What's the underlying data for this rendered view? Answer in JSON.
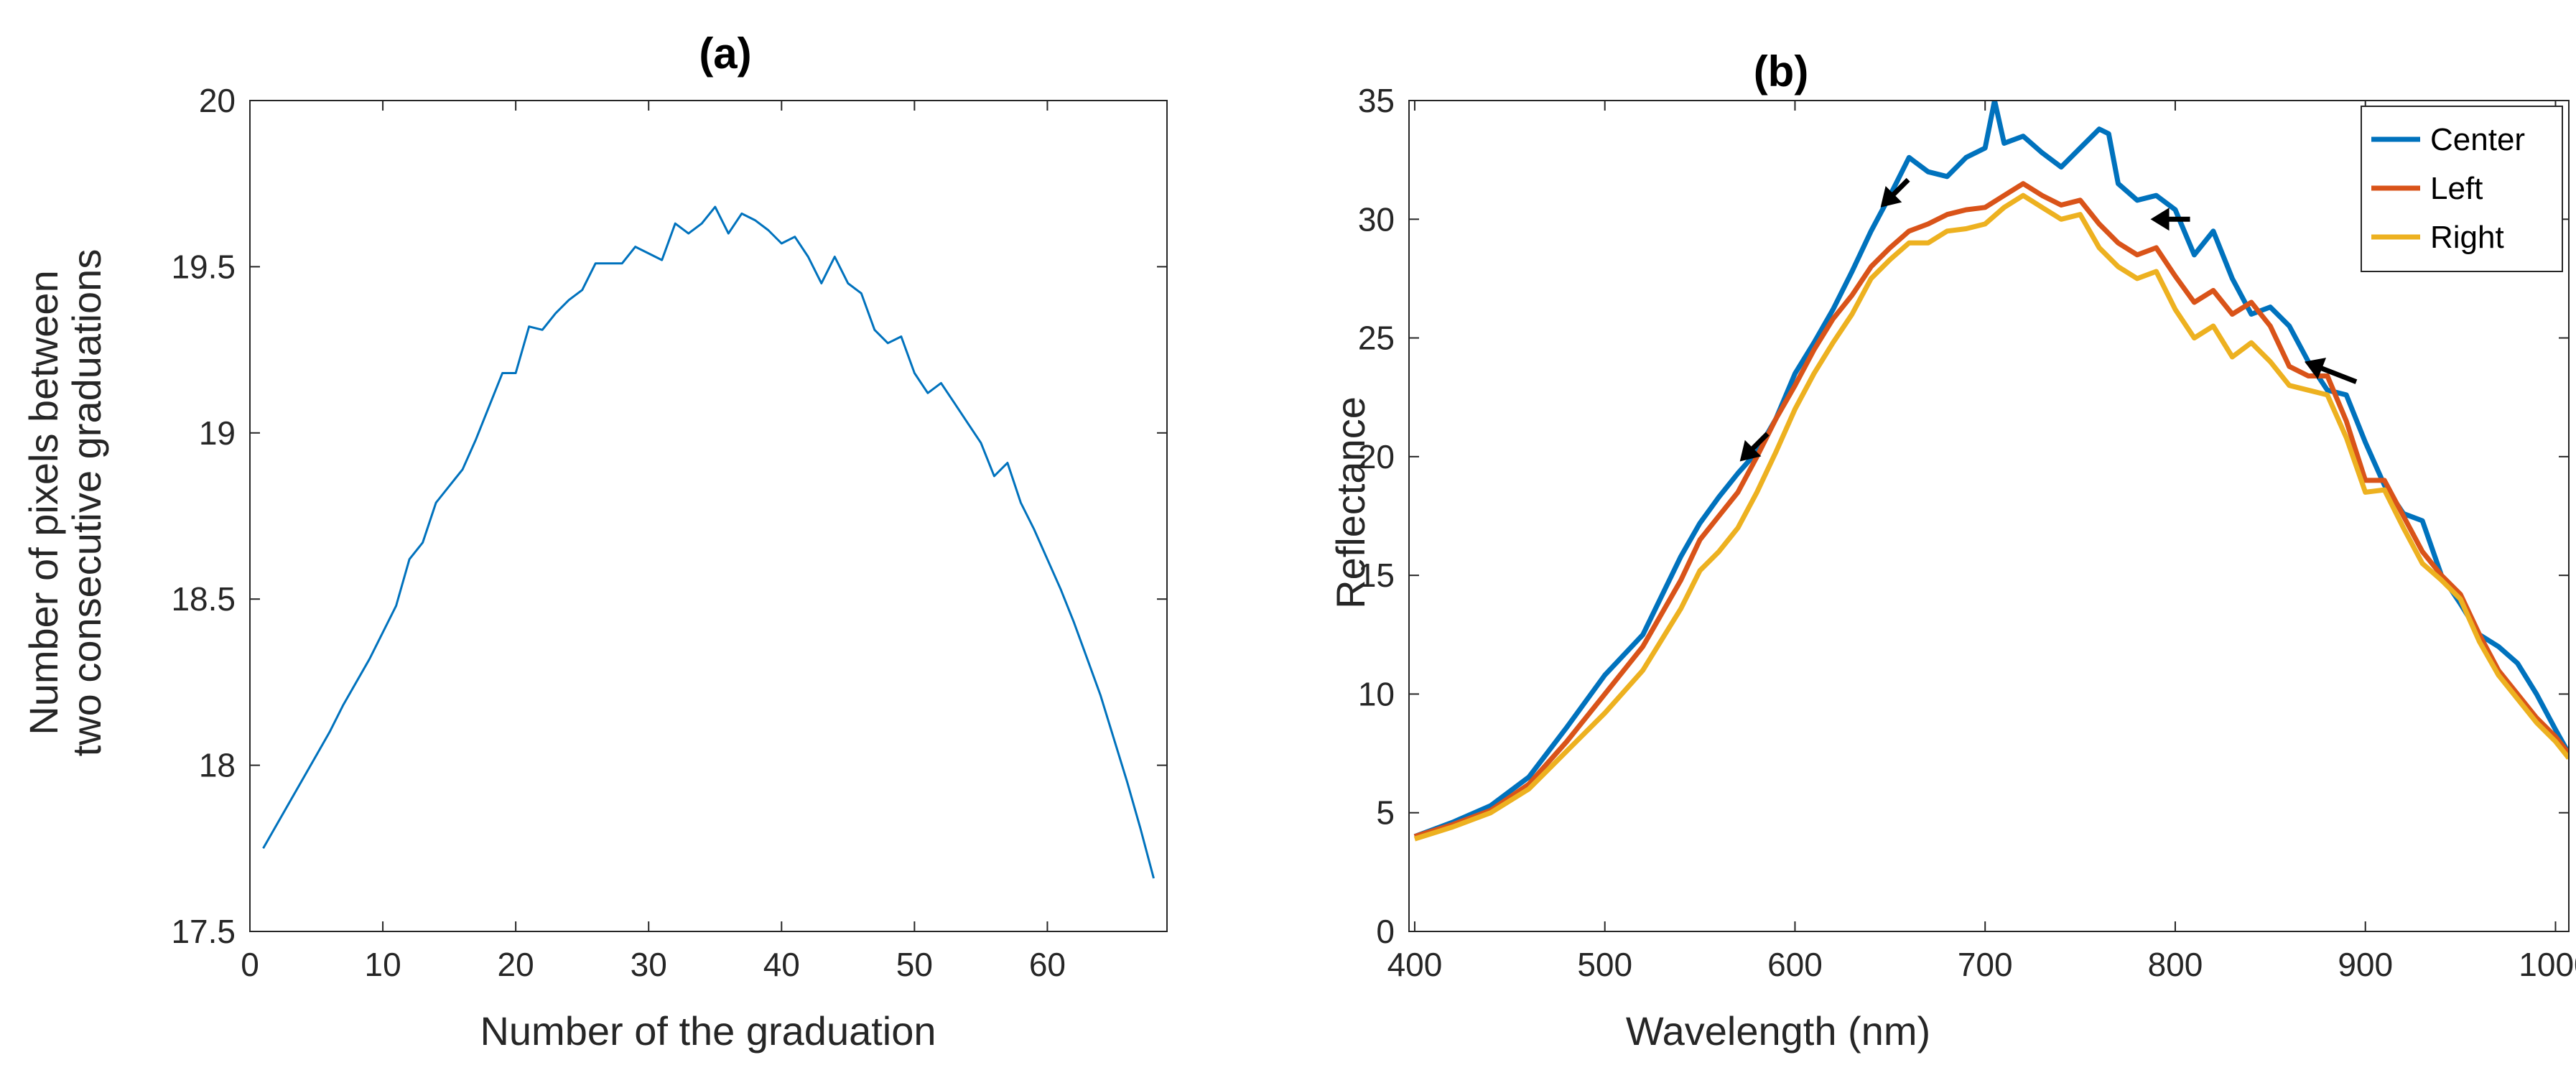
{
  "chart_data": [
    {
      "panel": "(a)",
      "type": "line",
      "title": "(a)",
      "xlabel": "Number of the graduation",
      "ylabel": [
        "Number of pixels between",
        "two consecutive graduations"
      ],
      "xlim": [
        0,
        69
      ],
      "ylim": [
        17.5,
        20
      ],
      "xticks": [
        0,
        10,
        20,
        30,
        40,
        50,
        60
      ],
      "yticks": [
        17.5,
        18,
        18.5,
        19,
        19.5,
        20
      ],
      "ytick_labels": [
        "17.5",
        "18",
        "18.5",
        "19",
        "19.5",
        "20"
      ],
      "grid": false,
      "series": [
        {
          "name": "pixels",
          "color": "#0072BD",
          "x": [
            1,
            2,
            3,
            4,
            5,
            6,
            7,
            8,
            9,
            10,
            11,
            12,
            13,
            14,
            15,
            16,
            17,
            18,
            19,
            20,
            21,
            22,
            23,
            24,
            25,
            26,
            27,
            28,
            29,
            30,
            31,
            32,
            33,
            34,
            35,
            36,
            37,
            38,
            39,
            40,
            41,
            42,
            43,
            44,
            45,
            46,
            47,
            48,
            49,
            50,
            51,
            52,
            53,
            54,
            55,
            56,
            57,
            58,
            59,
            60,
            61,
            62,
            63,
            64,
            65,
            66,
            67,
            68
          ],
          "y": [
            17.75,
            17.82,
            17.89,
            17.96,
            18.03,
            18.1,
            18.18,
            18.25,
            18.32,
            18.4,
            18.48,
            18.62,
            18.67,
            18.79,
            18.84,
            18.89,
            18.98,
            19.08,
            19.18,
            19.18,
            19.32,
            19.31,
            19.36,
            19.4,
            19.43,
            19.51,
            19.51,
            19.51,
            19.56,
            19.54,
            19.52,
            19.63,
            19.6,
            19.63,
            19.68,
            19.6,
            19.66,
            19.64,
            19.61,
            19.57,
            19.59,
            19.53,
            19.45,
            19.53,
            19.45,
            19.42,
            19.31,
            19.27,
            19.29,
            19.18,
            19.12,
            19.15,
            19.09,
            19.03,
            18.97,
            18.87,
            18.91,
            18.79,
            18.71,
            18.62,
            18.53,
            18.43,
            18.32,
            18.21,
            18.08,
            17.95,
            17.81,
            17.66
          ]
        }
      ]
    },
    {
      "panel": "(b)",
      "type": "line",
      "title": "(b)",
      "xlabel": "Wavelength (nm)",
      "ylabel": "Reflectance",
      "xlim": [
        397,
        1007
      ],
      "ylim": [
        0,
        35
      ],
      "xticks": [
        400,
        500,
        600,
        700,
        800,
        900,
        1000
      ],
      "yticks": [
        0,
        5,
        10,
        15,
        20,
        25,
        30,
        35
      ],
      "grid": false,
      "legend": {
        "location": "top-right",
        "entries": [
          "Center",
          "Left",
          "Right"
        ]
      },
      "annotations": [
        {
          "type": "arrow",
          "label": "arrow",
          "target": [
            645,
            30.5
          ],
          "direction": "down-left"
        },
        {
          "type": "arrow",
          "label": "arrow",
          "target": [
            787,
            30.0
          ],
          "direction": "left"
        },
        {
          "type": "arrow",
          "label": "arrow",
          "target": [
            868,
            24.0
          ],
          "direction": "up-left"
        },
        {
          "type": "arrow",
          "label": "arrow",
          "target": [
            571,
            19.8
          ],
          "direction": "down-left"
        }
      ],
      "series": [
        {
          "name": "Center",
          "color": "#0072BD",
          "x": [
            400,
            420,
            440,
            460,
            480,
            500,
            520,
            540,
            550,
            560,
            570,
            580,
            590,
            600,
            610,
            620,
            630,
            640,
            650,
            660,
            670,
            680,
            690,
            700,
            705,
            710,
            720,
            730,
            740,
            750,
            760,
            765,
            770,
            780,
            790,
            800,
            810,
            820,
            830,
            840,
            850,
            860,
            870,
            880,
            890,
            900,
            910,
            920,
            930,
            940,
            950,
            960,
            970,
            980,
            990,
            1000,
            1007
          ],
          "y": [
            4.0,
            4.6,
            5.3,
            6.5,
            8.6,
            10.8,
            12.5,
            15.8,
            17.2,
            18.3,
            19.3,
            20.2,
            21.6,
            23.5,
            24.8,
            26.2,
            27.8,
            29.5,
            31.0,
            32.6,
            32.0,
            31.8,
            32.6,
            33.0,
            35.0,
            33.2,
            33.5,
            32.8,
            32.2,
            33.0,
            33.8,
            33.6,
            31.5,
            30.8,
            31.0,
            30.4,
            28.5,
            29.5,
            27.5,
            26.0,
            26.3,
            25.5,
            24.0,
            22.8,
            22.6,
            20.6,
            18.8,
            17.6,
            17.3,
            15.0,
            13.8,
            12.5,
            12.0,
            11.3,
            10.0,
            8.5,
            7.5
          ]
        },
        {
          "name": "Left",
          "color": "#D95319",
          "x": [
            400,
            420,
            440,
            460,
            480,
            500,
            520,
            540,
            550,
            560,
            570,
            580,
            590,
            600,
            610,
            620,
            630,
            640,
            650,
            660,
            670,
            680,
            690,
            700,
            710,
            720,
            730,
            740,
            750,
            760,
            770,
            780,
            790,
            800,
            810,
            820,
            830,
            840,
            850,
            860,
            870,
            880,
            890,
            900,
            910,
            920,
            930,
            940,
            950,
            960,
            970,
            980,
            990,
            1000,
            1007
          ],
          "y": [
            4.0,
            4.5,
            5.1,
            6.2,
            8.0,
            10.0,
            12.0,
            14.8,
            16.5,
            17.5,
            18.5,
            20.0,
            21.6,
            23.0,
            24.5,
            25.8,
            26.8,
            28.0,
            28.8,
            29.5,
            29.8,
            30.2,
            30.4,
            30.5,
            31.0,
            31.5,
            31.0,
            30.6,
            30.8,
            29.8,
            29.0,
            28.5,
            28.8,
            27.6,
            26.5,
            27.0,
            26.0,
            26.5,
            25.5,
            23.8,
            23.4,
            23.4,
            21.5,
            19.0,
            19.0,
            17.5,
            16.0,
            15.0,
            14.2,
            12.5,
            11.0,
            10.0,
            9.0,
            8.2,
            7.5
          ]
        },
        {
          "name": "Right",
          "color": "#EDB120",
          "x": [
            400,
            420,
            440,
            460,
            480,
            500,
            520,
            540,
            550,
            560,
            570,
            580,
            590,
            600,
            610,
            620,
            630,
            640,
            650,
            660,
            670,
            680,
            690,
            700,
            710,
            720,
            730,
            740,
            750,
            760,
            770,
            780,
            790,
            800,
            810,
            820,
            830,
            840,
            850,
            860,
            870,
            880,
            890,
            900,
            910,
            920,
            930,
            940,
            950,
            960,
            970,
            980,
            990,
            1000,
            1007
          ],
          "y": [
            3.9,
            4.4,
            5.0,
            6.0,
            7.6,
            9.2,
            11.0,
            13.6,
            15.2,
            16.0,
            17.0,
            18.5,
            20.2,
            22.0,
            23.5,
            24.8,
            26.0,
            27.5,
            28.3,
            29.0,
            29.0,
            29.5,
            29.6,
            29.8,
            30.5,
            31.0,
            30.5,
            30.0,
            30.2,
            28.8,
            28.0,
            27.5,
            27.8,
            26.2,
            25.0,
            25.5,
            24.2,
            24.8,
            24.0,
            23.0,
            22.8,
            22.6,
            20.8,
            18.5,
            18.6,
            17.0,
            15.5,
            14.8,
            14.0,
            12.2,
            10.8,
            9.8,
            8.8,
            8.0,
            7.3
          ]
        }
      ]
    }
  ]
}
